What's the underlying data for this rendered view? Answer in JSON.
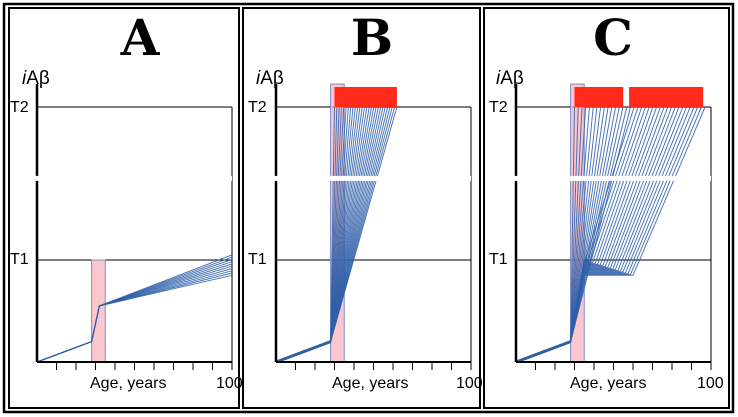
{
  "chart_data": [
    {
      "type": "line",
      "panel": "A",
      "ylabel_prefix": "i",
      "ylabel_main": "Aβ",
      "xlabel": "Age, years",
      "x_max_label": "100",
      "y_ticks": [
        "T1",
        "T2"
      ],
      "xlim": [
        0,
        100
      ],
      "ylim": [
        0,
        100
      ],
      "y_levels": {
        "T1": 40,
        "T2": 100
      },
      "highlight": {
        "x0": 28,
        "x1": 35,
        "y0": 0,
        "y1": 40
      },
      "red_bars": [],
      "axis_break_y": 72,
      "series": [
        {
          "name": "trajectories",
          "count": 10,
          "x": [
            0,
            28,
            32,
            100
          ],
          "y_start": [
            0,
            8,
            22,
            34
          ],
          "y_end": [
            0,
            8,
            22,
            42
          ]
        }
      ]
    },
    {
      "type": "line",
      "panel": "B",
      "ylabel_prefix": "i",
      "ylabel_main": "Aβ",
      "xlabel": "Age, years",
      "x_max_label": "100",
      "y_ticks": [
        "T1",
        "T2"
      ],
      "xlim": [
        0,
        100
      ],
      "ylim": [
        0,
        100
      ],
      "y_levels": {
        "T1": 40,
        "T2": 100
      },
      "highlight": {
        "x0": 28,
        "x1": 35,
        "y0": 0,
        "y1": 109
      },
      "red_bars": [
        {
          "x0": 30,
          "x1": 62
        }
      ],
      "axis_break_y": 72,
      "fan": {
        "origin": [
          28,
          8
        ],
        "x_end_min": 30,
        "x_end_max": 62,
        "y_end": 100,
        "count": 28
      }
    },
    {
      "type": "line",
      "panel": "C",
      "ylabel_prefix": "i",
      "ylabel_main": "Aβ",
      "xlabel": "Age, years",
      "x_max_label": "100",
      "y_ticks": [
        "T1",
        "T2"
      ],
      "xlim": [
        0,
        100
      ],
      "ylim": [
        0,
        100
      ],
      "y_levels": {
        "T1": 40,
        "T2": 100
      },
      "highlight": {
        "x0": 28,
        "x1": 35,
        "y0": 0,
        "y1": 109
      },
      "red_bars": [
        {
          "x0": 30,
          "x1": 55
        },
        {
          "x0": 58,
          "x1": 96
        }
      ],
      "axis_break_y": 72,
      "fan": {
        "origin": [
          28,
          8
        ],
        "spread_x": 35,
        "spread_y_min": 34,
        "spread_y_max": 40,
        "mid_x": 60,
        "x_end_min": 30,
        "x_end_max": 97,
        "y_end": 100,
        "count": 36
      }
    }
  ]
}
